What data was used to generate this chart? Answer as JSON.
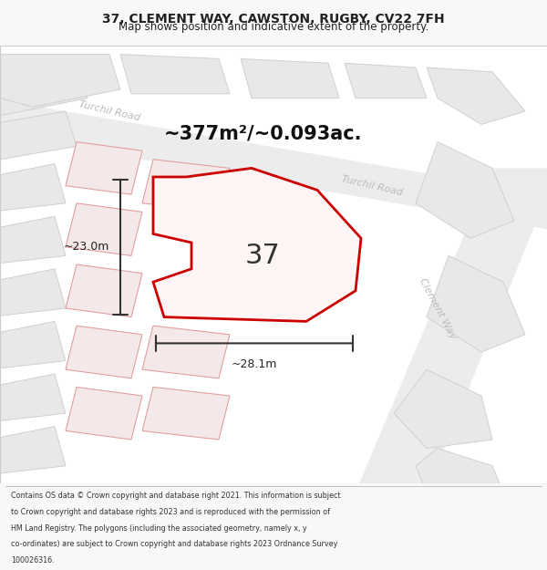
{
  "title_line1": "37, CLEMENT WAY, CAWSTON, RUGBY, CV22 7FH",
  "title_line2": "Map shows position and indicative extent of the property.",
  "area_text": "~377m²/~0.093ac.",
  "label_37": "37",
  "label_23m": "~23.0m",
  "label_28m": "~28.1m",
  "road_label_1": "Turchil Roa⁠d",
  "road_label_2": "Turchil Road",
  "road_label_clement": "Clement Way",
  "footer_lines": [
    "Contains OS data © Crown copyright and database right 2021. This information is subject",
    "to Crown copyright and database rights 2023 and is reproduced with the permission of",
    "HM Land Registry. The polygons (including the associated geometry, namely x, y",
    "co-ordinates) are subject to Crown copyright and database rights 2023 Ordnance Survey",
    "100026316."
  ],
  "title_color": "#222222",
  "area_color": "#111111"
}
